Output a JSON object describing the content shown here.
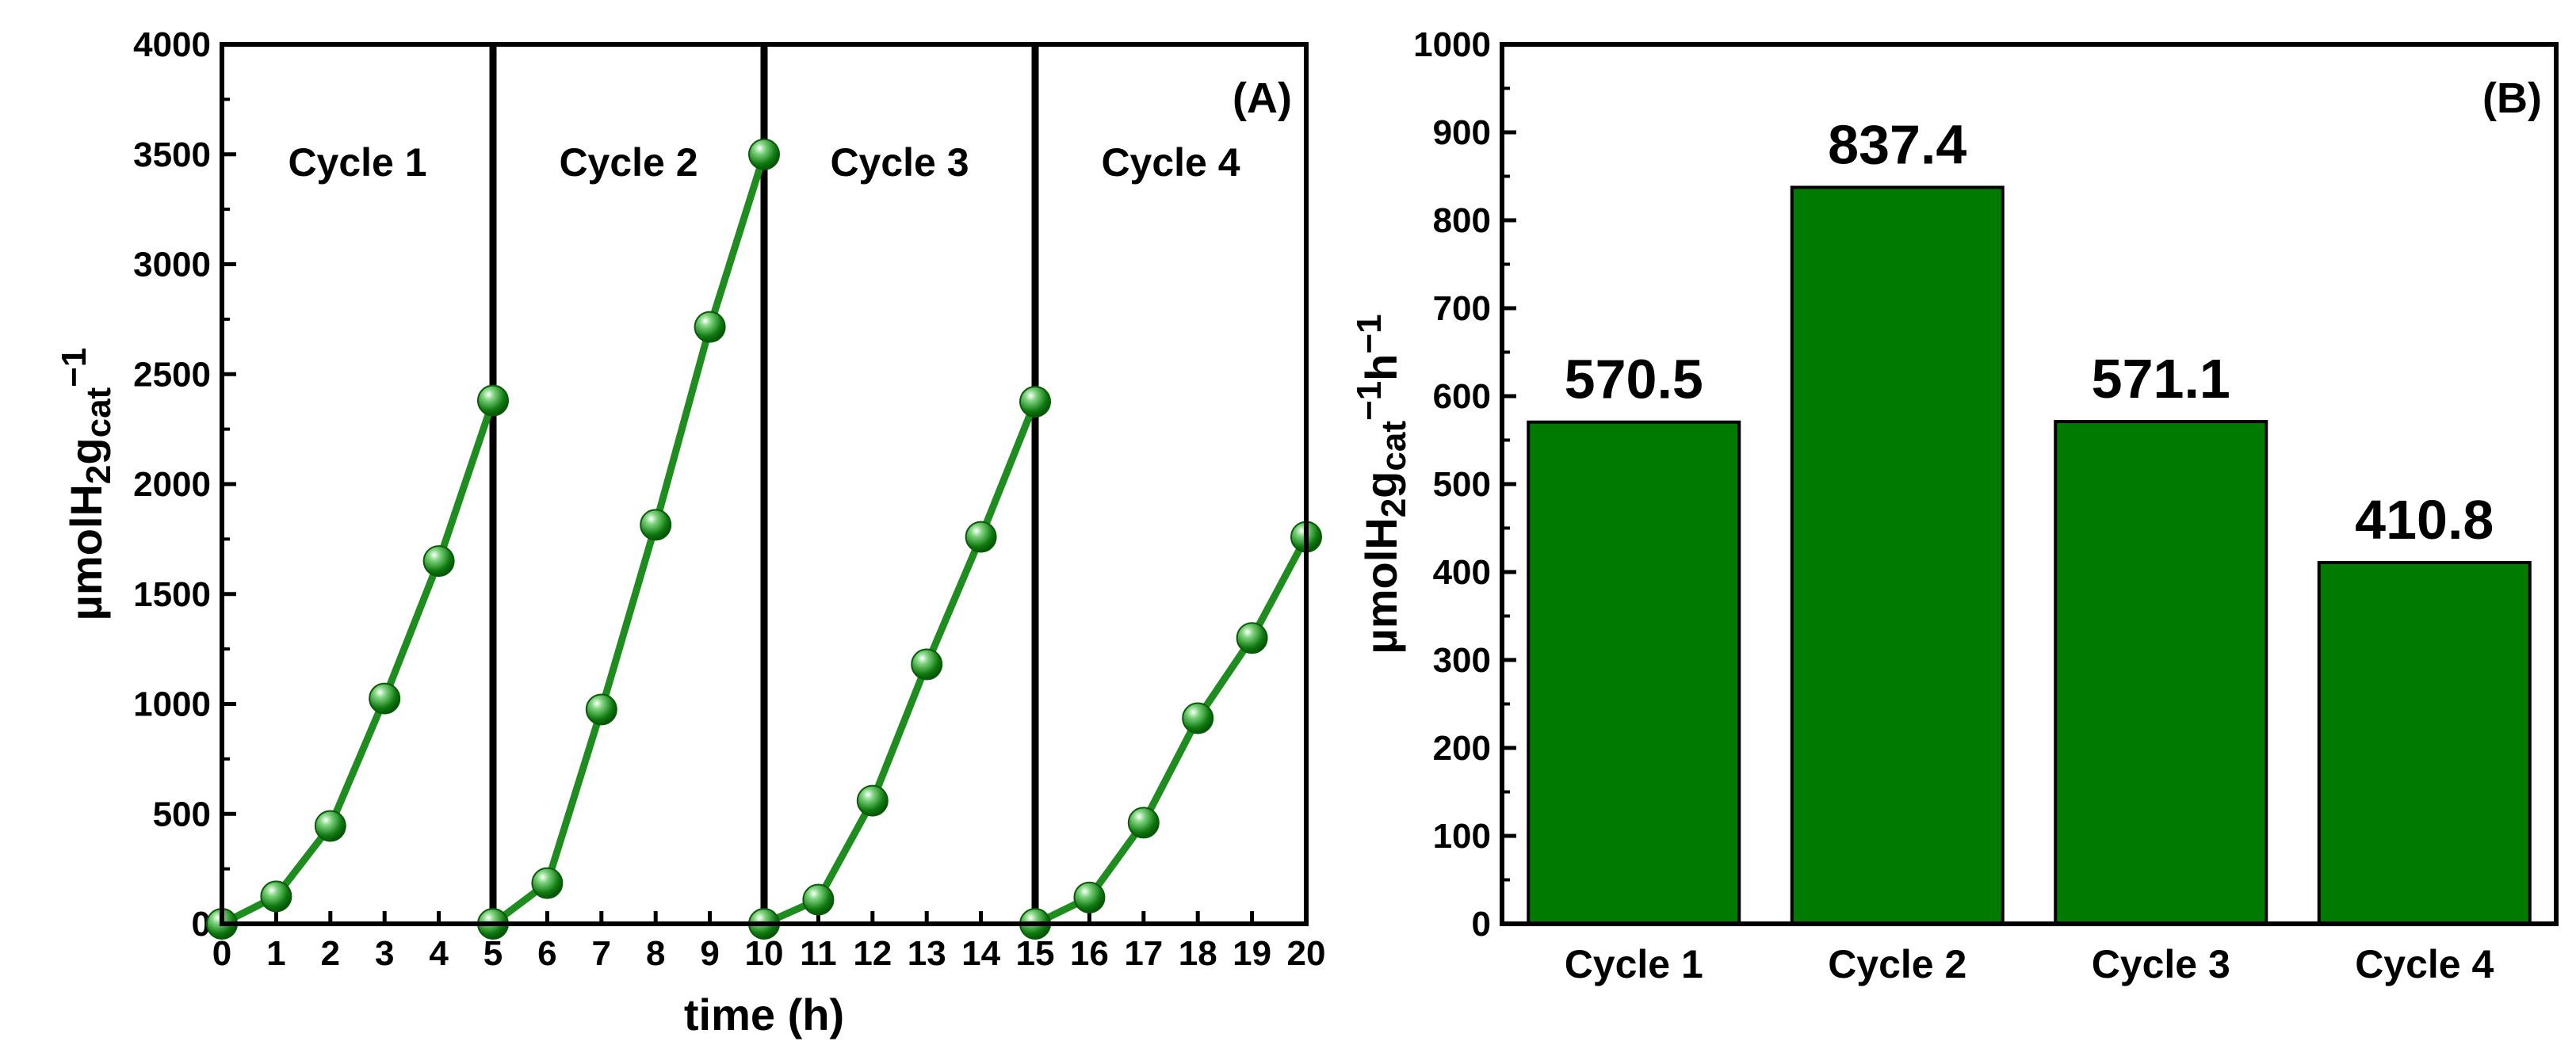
{
  "chart_data": [
    {
      "type": "line",
      "panel_label": "(A)",
      "xlabel": "time (h)",
      "ylabel": {
        "base": "µmolH",
        "sub1": "2",
        "mid": "g",
        "sub2": "cat",
        "sup": "−1"
      },
      "xlim": [
        0,
        20
      ],
      "ylim": [
        0,
        4000
      ],
      "xticks": [
        0,
        1,
        2,
        3,
        4,
        5,
        6,
        7,
        8,
        9,
        10,
        11,
        12,
        13,
        14,
        15,
        16,
        17,
        18,
        19,
        20
      ],
      "yticks": [
        0,
        500,
        1000,
        1500,
        2000,
        2500,
        3000,
        3500,
        4000
      ],
      "cycle_boundaries": [
        5,
        10,
        15
      ],
      "cycle_labels": [
        "Cycle 1",
        "Cycle 2",
        "Cycle 3",
        "Cycle 4"
      ],
      "line_color": "#1e8c1e",
      "series": [
        {
          "name": "Cycle 1",
          "x": [
            0,
            1,
            2,
            3,
            4,
            5
          ],
          "y": [
            0,
            125,
            445,
            1025,
            1650,
            2380
          ]
        },
        {
          "name": "Cycle 2",
          "x": [
            5,
            6,
            7,
            8,
            9,
            10
          ],
          "y": [
            0,
            185,
            975,
            1815,
            2715,
            3500
          ]
        },
        {
          "name": "Cycle 3",
          "x": [
            10,
            11,
            12,
            13,
            14,
            15
          ],
          "y": [
            0,
            110,
            560,
            1180,
            1760,
            2375
          ]
        },
        {
          "name": "Cycle 4",
          "x": [
            15,
            16,
            17,
            18,
            19,
            20
          ],
          "y": [
            0,
            120,
            460,
            935,
            1300,
            1760
          ]
        }
      ]
    },
    {
      "type": "bar",
      "panel_label": "(B)",
      "ylabel": {
        "base": "µmolH",
        "sub1": "2",
        "mid": "g",
        "sub2": "cat",
        "sup": "−1",
        "tail": "h",
        "sup2": "−1"
      },
      "categories": [
        "Cycle 1",
        "Cycle 2",
        "Cycle 3",
        "Cycle 4"
      ],
      "values": [
        570.5,
        837.4,
        571.1,
        410.8
      ],
      "value_labels": [
        "570.5",
        "837.4",
        "571.1",
        "410.8"
      ],
      "ylim": [
        0,
        1000
      ],
      "yticks": [
        0,
        100,
        200,
        300,
        400,
        500,
        600,
        700,
        800,
        900,
        1000
      ],
      "bar_color": "#007a00"
    }
  ]
}
